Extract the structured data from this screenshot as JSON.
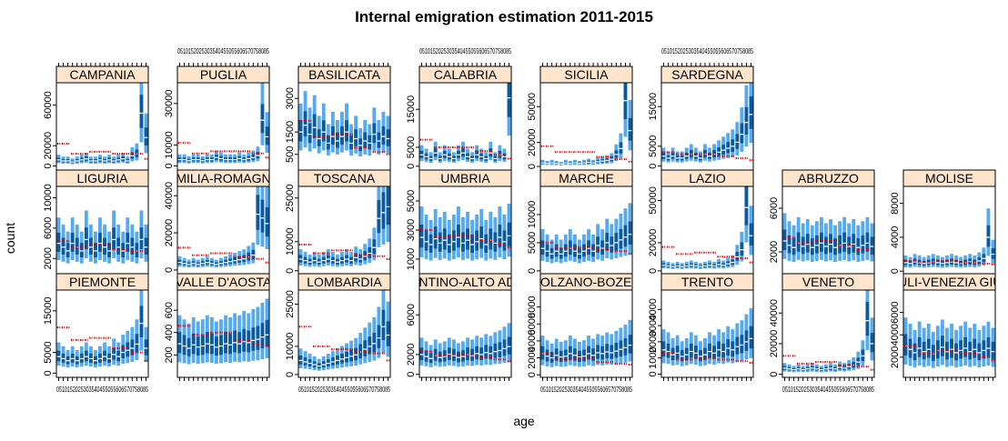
{
  "chart_data": {
    "type": "bar",
    "title": "Internal emigration estimation 2011-2015",
    "xlabel": "age",
    "ylabel": "count",
    "age_tick_labels": "0510152025303540455055606570758085",
    "colors": {
      "outer_band": "#55aaf0",
      "inner_band": "#0a5aa0",
      "mean_line": "#dd0000",
      "strip_fill": "#ffe5cc"
    },
    "panels": [
      {
        "name": "CAMPANIA",
        "yticks": [
          0,
          20000,
          60000
        ],
        "yrange": [
          -4000,
          82000
        ],
        "median": [
          6000,
          5000,
          5000,
          4000,
          5000,
          6000,
          7000,
          5000,
          5000,
          6000,
          5000,
          6000,
          5000,
          6000,
          7000,
          5000,
          10000,
          12000,
          52000,
          28000
        ],
        "mean": [
          22000,
          22000,
          22000,
          12000,
          12000,
          12000,
          12000,
          14000,
          14000,
          14000,
          14000,
          14000,
          12000,
          12000,
          12000,
          12000,
          12000,
          12000,
          12000,
          7000
        ]
      },
      {
        "name": "PUGLIA",
        "yticks": [
          0,
          10000,
          30000
        ],
        "yrange": [
          -2000,
          40000
        ],
        "median": [
          3000,
          3000,
          2500,
          3000,
          3000,
          2500,
          3000,
          3000,
          4000,
          3500,
          3000,
          3000,
          3000,
          3500,
          3000,
          3500,
          4000,
          5000,
          22000,
          14000
        ],
        "mean": [
          11000,
          11000,
          11000,
          6000,
          6000,
          6000,
          6000,
          7000,
          7000,
          7000,
          7000,
          7000,
          7000,
          7000,
          7000,
          7000,
          6000,
          6000,
          6000,
          4000
        ]
      },
      {
        "name": "BASILICATA",
        "yticks": [
          500,
          1500,
          3000
        ],
        "yrange": [
          -200,
          3700
        ],
        "median": [
          1500,
          1800,
          1400,
          1700,
          1200,
          1500,
          1000,
          1300,
          1100,
          1300,
          1500,
          1000,
          1200,
          900,
          1100,
          1000,
          1400,
          1100,
          1300,
          1200
        ],
        "mean": [
          2000,
          2000,
          2000,
          1300,
          1300,
          1300,
          1300,
          1400,
          1400,
          1400,
          1400,
          1400,
          800,
          800,
          800,
          800,
          600,
          600,
          600,
          500
        ]
      },
      {
        "name": "CALABRIA",
        "yticks": [
          0,
          5000,
          15000
        ],
        "yrange": [
          -1000,
          22000
        ],
        "median": [
          3000,
          2500,
          2000,
          3500,
          2000,
          3000,
          2500,
          2000,
          3000,
          3500,
          2500,
          2000,
          3000,
          2500,
          2000,
          3500,
          2000,
          3000,
          2500,
          18000
        ],
        "mean": [
          7000,
          7000,
          7000,
          5000,
          5000,
          5000,
          5000,
          5000,
          5000,
          5000,
          5000,
          5000,
          4000,
          4000,
          4000,
          4000,
          3000,
          3000,
          3000,
          2000
        ]
      },
      {
        "name": "SICILIA",
        "yticks": [
          0,
          20000,
          50000
        ],
        "yrange": [
          -3000,
          70000
        ],
        "median": [
          3000,
          2500,
          3000,
          2500,
          2000,
          3000,
          2500,
          3000,
          2500,
          3000,
          3500,
          3000,
          4000,
          4500,
          5000,
          6000,
          10000,
          15000,
          55000,
          30000
        ],
        "mean": [
          17000,
          17000,
          17000,
          12000,
          12000,
          12000,
          12000,
          12000,
          12000,
          12000,
          12000,
          12000,
          8000,
          8000,
          8000,
          8000,
          6000,
          6000,
          6000,
          4000
        ]
      },
      {
        "name": "SARDEGNA",
        "yticks": [
          0,
          5000,
          15000
        ],
        "yrange": [
          -1000,
          21000
        ],
        "median": [
          2500,
          2000,
          2500,
          2000,
          2000,
          2500,
          3000,
          2500,
          2000,
          3000,
          2500,
          3000,
          3500,
          4000,
          4500,
          5000,
          6000,
          8000,
          11000,
          13000
        ],
        "mean": [
          3500,
          3500,
          3500,
          3000,
          3000,
          3000,
          3000,
          3000,
          3000,
          3000,
          3000,
          3000,
          2500,
          2500,
          2500,
          2500,
          2000,
          2000,
          2000,
          1500
        ]
      },
      {
        "name": "LIGURIA",
        "yticks": [
          2000,
          6000,
          10000
        ],
        "yrange": [
          0,
          11500
        ],
        "median": [
          4000,
          3500,
          3000,
          4000,
          3500,
          3000,
          4500,
          3500,
          3000,
          4000,
          3500,
          3000,
          4500,
          3500,
          3000,
          4000,
          3500,
          3000,
          4500,
          3500
        ],
        "mean": [
          4300,
          4300,
          4300,
          3500,
          3500,
          3500,
          3500,
          3800,
          3800,
          3800,
          3800,
          3800,
          3200,
          3200,
          3200,
          3200,
          3000,
          3000,
          3000,
          2800
        ]
      },
      {
        "name": "EMILIA-ROMAGNA",
        "yticks": [
          0,
          20000,
          40000
        ],
        "yrange": [
          -2000,
          45000
        ],
        "median": [
          4000,
          3500,
          3000,
          3500,
          3000,
          3500,
          4000,
          3500,
          3000,
          3500,
          4000,
          4500,
          5000,
          5500,
          6000,
          7000,
          8000,
          30000,
          28000,
          25000
        ],
        "mean": [
          12000,
          12000,
          12000,
          8000,
          8000,
          8000,
          8000,
          9000,
          9000,
          9000,
          9000,
          9000,
          7000,
          7000,
          7000,
          7000,
          6000,
          6000,
          6000,
          4000
        ]
      },
      {
        "name": "TOSCANA",
        "yticks": [
          0,
          10000,
          25000
        ],
        "yrange": [
          -1000,
          29000
        ],
        "median": [
          4000,
          3500,
          3000,
          3500,
          3000,
          3500,
          4000,
          3500,
          3000,
          3500,
          4000,
          3500,
          4500,
          4000,
          5000,
          6000,
          8000,
          18000,
          20000,
          22000
        ],
        "mean": [
          9000,
          9000,
          9000,
          6000,
          6000,
          6000,
          6000,
          7000,
          7000,
          7000,
          7000,
          7000,
          5500,
          5500,
          5500,
          5500,
          5000,
          5000,
          5000,
          4000
        ]
      },
      {
        "name": "UMBRIA",
        "yticks": [
          1000,
          3000,
          5000
        ],
        "yrange": [
          0,
          6000
        ],
        "median": [
          2500,
          2200,
          2000,
          2400,
          2100,
          2300,
          2000,
          2200,
          2500,
          2100,
          2300,
          2000,
          2200,
          2400,
          2000,
          2300,
          2100,
          2500,
          2200,
          2600
        ],
        "mean": [
          3000,
          3000,
          3000,
          2500,
          2500,
          2500,
          2500,
          2600,
          2600,
          2600,
          2600,
          2600,
          2300,
          2300,
          2300,
          2300,
          2000,
          2000,
          2000,
          1800
        ]
      },
      {
        "name": "MARCHE",
        "yticks": [
          0,
          5000,
          10000
        ],
        "yrange": [
          -500,
          15000
        ],
        "median": [
          4000,
          3500,
          3000,
          3500,
          3000,
          3500,
          4000,
          3500,
          3000,
          3500,
          4000,
          3500,
          4500,
          4000,
          5000,
          4500,
          5000,
          5500,
          6000,
          6500
        ],
        "mean": [
          5000,
          5000,
          5000,
          4000,
          4000,
          4000,
          4000,
          4200,
          4200,
          4200,
          4200,
          4200,
          3800,
          3800,
          3800,
          3800,
          3500,
          3500,
          3500,
          3000
        ]
      },
      {
        "name": "LAZIO",
        "yticks": [
          0,
          20000,
          50000
        ],
        "yrange": [
          -2000,
          60000
        ],
        "median": [
          4000,
          3500,
          3000,
          3500,
          3000,
          3500,
          4000,
          3500,
          3000,
          3500,
          4000,
          3500,
          4500,
          4000,
          5000,
          6000,
          10000,
          15000,
          45000,
          25000
        ],
        "mean": [
          17000,
          17000,
          17000,
          12000,
          12000,
          12000,
          12000,
          13000,
          13000,
          13000,
          13000,
          13000,
          10000,
          10000,
          10000,
          10000,
          9000,
          9000,
          9000,
          6000
        ]
      },
      {
        "name": "ABRUZZO",
        "yticks": [
          2000,
          6000
        ],
        "yrange": [
          0,
          8000
        ],
        "median": [
          3000,
          2600,
          2400,
          2800,
          2500,
          2700,
          2400,
          2600,
          2800,
          2500,
          2700,
          2400,
          2600,
          2800,
          2500,
          2700,
          2400,
          2600,
          2800,
          2500
        ],
        "mean": [
          3300,
          3300,
          3300,
          2800,
          2800,
          2800,
          2800,
          3000,
          3000,
          3000,
          3000,
          3000,
          2600,
          2600,
          2600,
          2600,
          2200,
          2200,
          2200,
          1800
        ]
      },
      {
        "name": "MOLISE",
        "yticks": [
          0,
          4000,
          8000
        ],
        "yrange": [
          -300,
          10000
        ],
        "median": [
          1000,
          900,
          1100,
          1000,
          900,
          1000,
          1100,
          1000,
          900,
          1000,
          1100,
          1000,
          900,
          1000,
          1100,
          1000,
          1200,
          1500,
          4000,
          2000
        ],
        "mean": [
          1200,
          1200,
          1200,
          1100,
          1100,
          1100,
          1100,
          1200,
          1200,
          1200,
          1200,
          1200,
          1000,
          1000,
          1000,
          1000,
          900,
          900,
          900,
          800
        ]
      },
      {
        "name": "PIEMONTE",
        "yticks": [
          0,
          5000,
          15000
        ],
        "yrange": [
          -1000,
          20000
        ],
        "median": [
          4000,
          3500,
          3000,
          3500,
          3000,
          3500,
          4000,
          3500,
          3000,
          3500,
          4000,
          3500,
          4500,
          4000,
          5000,
          5500,
          6000,
          7000,
          12000,
          6000
        ],
        "mean": [
          11000,
          11000,
          11000,
          8000,
          8000,
          8000,
          8000,
          8500,
          8500,
          8500,
          8500,
          8500,
          6000,
          6000,
          6000,
          6000,
          5000,
          5000,
          5000,
          3000
        ]
      },
      {
        "name": "VALLE D'AOSTA",
        "yticks": [
          200,
          400,
          600
        ],
        "yrange": [
          0,
          780
        ],
        "median": [
          300,
          280,
          260,
          290,
          270,
          280,
          300,
          290,
          270,
          280,
          300,
          290,
          310,
          300,
          320,
          310,
          330,
          340,
          360,
          380
        ],
        "mean": [
          460,
          460,
          460,
          380,
          380,
          380,
          380,
          400,
          400,
          400,
          400,
          400,
          330,
          330,
          330,
          330,
          300,
          300,
          300,
          280
        ]
      },
      {
        "name": "LOMBARDIA",
        "yticks": [
          0,
          10000,
          25000
        ],
        "yrange": [
          -1000,
          30000
        ],
        "median": [
          5000,
          4500,
          4000,
          3500,
          3000,
          3500,
          4000,
          4500,
          5000,
          5500,
          6000,
          6500,
          7000,
          8000,
          9000,
          10000,
          11000,
          13000,
          17000,
          14000
        ],
        "mean": [
          17000,
          17000,
          17000,
          10000,
          10000,
          10000,
          10000,
          9000,
          9000,
          9000,
          9000,
          9000,
          8000,
          8000,
          8000,
          8000,
          7500,
          7500,
          7500,
          5000
        ]
      },
      {
        "name": "TRENTINO-ALTO ADIGE",
        "yticks": [
          0,
          2000,
          6000
        ],
        "yrange": [
          -300,
          8500
        ],
        "median": [
          2000,
          1800,
          1600,
          1900,
          1700,
          1800,
          2000,
          1900,
          1700,
          1800,
          2000,
          1900,
          2100,
          2000,
          2200,
          2100,
          2300,
          2400,
          2600,
          2800
        ],
        "mean": [
          2300,
          2300,
          2300,
          1900,
          1900,
          1900,
          1900,
          2000,
          2000,
          2000,
          2000,
          2000,
          1700,
          1700,
          1700,
          1700,
          1500,
          1500,
          1500,
          1300
        ]
      },
      {
        "name": "BOLZANO-BOZEN",
        "yticks": [
          0,
          2000,
          4000,
          6000,
          8000
        ],
        "yrange": [
          -300,
          10000
        ],
        "median": [
          2500,
          2200,
          2000,
          2300,
          2100,
          2200,
          2500,
          2300,
          2100,
          2200,
          2500,
          2300,
          2600,
          2500,
          2700,
          2600,
          2800,
          3000,
          3200,
          3500
        ],
        "mean": [
          2500,
          2500,
          2500,
          1800,
          1800,
          1800,
          1800,
          2000,
          2000,
          2000,
          2000,
          2000,
          1500,
          1500,
          1500,
          1500,
          1300,
          1300,
          1300,
          1200
        ]
      },
      {
        "name": "TRENTO",
        "yticks": [
          0,
          1000,
          2000,
          3000,
          4000
        ],
        "yrange": [
          -200,
          5200
        ],
        "median": [
          1500,
          1400,
          1200,
          1300,
          1100,
          1200,
          1400,
          1300,
          1100,
          1200,
          1400,
          1300,
          1500,
          1400,
          1600,
          1500,
          1700,
          1800,
          2000,
          2200
        ],
        "mean": [
          1300,
          1300,
          1300,
          900,
          900,
          900,
          900,
          1000,
          1000,
          1000,
          1000,
          1000,
          900,
          900,
          900,
          900,
          800,
          800,
          800,
          700
        ]
      },
      {
        "name": "VENETO",
        "yticks": [
          0,
          20000,
          40000
        ],
        "yrange": [
          -2000,
          55000
        ],
        "median": [
          4000,
          3500,
          3000,
          3500,
          3000,
          3500,
          4000,
          3500,
          3000,
          3500,
          4000,
          3500,
          4500,
          4000,
          5000,
          6000,
          8000,
          12000,
          35000,
          20000
        ],
        "mean": [
          12000,
          12000,
          12000,
          7000,
          7000,
          7000,
          7000,
          8000,
          8000,
          8000,
          8000,
          8000,
          6000,
          6000,
          6000,
          6000,
          5000,
          5000,
          5000,
          3000
        ]
      },
      {
        "name": "FRIULI-VENEZIA GIULIA",
        "yticks": [
          2000,
          4000,
          6000
        ],
        "yrange": [
          200,
          8000
        ],
        "median": [
          3000,
          2700,
          2400,
          2800,
          2500,
          2700,
          2300,
          2600,
          2900,
          2500,
          2700,
          2400,
          2600,
          2800,
          2500,
          2700,
          2400,
          2600,
          2800,
          2500
        ],
        "mean": [
          3000,
          3000,
          3000,
          2300,
          2300,
          2300,
          2300,
          2600,
          2600,
          2600,
          2600,
          2600,
          2300,
          2300,
          2300,
          2300,
          2000,
          2000,
          2000,
          1700
        ]
      }
    ]
  }
}
